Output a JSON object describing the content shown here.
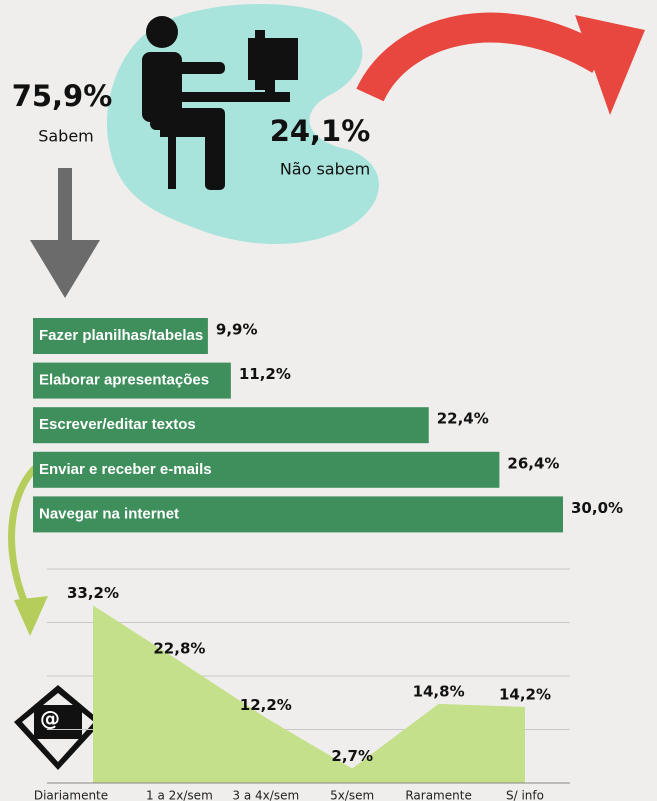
{
  "stats": [
    {
      "value": "75,9%",
      "label": "Sabem"
    },
    {
      "value": "24,1%",
      "label": "Não sabem"
    }
  ],
  "chart_data": [
    {
      "type": "hbar",
      "categories": [
        "Fazer planilhas/tabelas",
        "Elaborar apresentações",
        "Escrever/editar textos",
        "Enviar e receber e-mails",
        "Navegar na internet"
      ],
      "values": [
        9.9,
        11.2,
        22.4,
        26.4,
        30.0
      ],
      "value_labels": [
        "9,9%",
        "11,2%",
        "22,4%",
        "26,4%",
        "30,0%"
      ],
      "color": "#3f8f5c"
    },
    {
      "type": "area",
      "categories": [
        "Diariamente",
        "1 a 2x/sem",
        "3 a 4x/sem",
        "5x/sem",
        "Raramente",
        "S/ info"
      ],
      "values": [
        33.2,
        22.8,
        12.2,
        2.7,
        14.8,
        14.2
      ],
      "value_labels": [
        "33,2%",
        "22,8%",
        "12,2%",
        "2,7%",
        "14,8%",
        "14,2%"
      ],
      "color": "#c5e08a",
      "ylim": [
        0,
        40
      ],
      "yticks": [
        0,
        10,
        20,
        30,
        40
      ],
      "grid": true
    }
  ]
}
